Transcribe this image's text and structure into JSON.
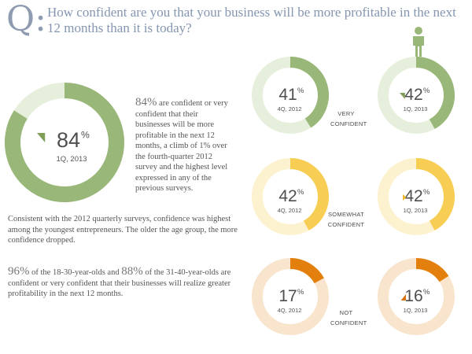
{
  "header": {
    "q_letter": "Q:",
    "question": "How confident are you that your business will be more profitable in the next 12 months than it is today?"
  },
  "summary": {
    "pct": "84%",
    "text": " are confident or very confident that their businesses will be more profitable in the next 12 months, a climb of 1% over the fourth-quarter 2012 survey and the highest level expressed in any of the previous surveys."
  },
  "paragraph": "Consistent with the 2012 quarterly surveys, confidence was highest among the youngest entrepreneurs. The older the age group, the more confidence dropped.",
  "age_note": {
    "pct1": "96%",
    "text1": " of the 18-30-year-olds and ",
    "pct2": "88%",
    "text2": " of the 31-40-year-olds are confident or very confident that their businesses will realize greater profitability in the next 12 months."
  },
  "categories": {
    "very_1": "VERY",
    "very_2": "CONFIDENT",
    "somewhat_1": "SOMEWHAT",
    "somewhat_2": "CONFIDENT",
    "not_1": "NOT",
    "not_2": "CONFIDENT"
  },
  "colors": {
    "green": "#9ab77a",
    "green_track": "#e6efdc",
    "yellow": "#f7cd53",
    "yellow_track": "#fdf2cf",
    "orange": "#e3800d",
    "orange_track": "#f9e4cd",
    "marker_green": "#7f9e57",
    "marker_yellow": "#f1b82a",
    "marker_orange": "#d9730e"
  },
  "chart_data": {
    "type": "pie",
    "title": "How confident are you that your business will be more profitable in the next 12 months than it is today?",
    "main": {
      "label": "1Q, 2013",
      "value": 84,
      "value_text": "84",
      "unit": "%",
      "marker": "down"
    },
    "categories": [
      "VERY CONFIDENT",
      "SOMEWHAT CONFIDENT",
      "NOT CONFIDENT"
    ],
    "series": [
      {
        "name": "4Q, 2012",
        "values": [
          41,
          42,
          17
        ],
        "value_texts": [
          "41",
          "42",
          "17"
        ]
      },
      {
        "name": "1Q, 2013",
        "values": [
          42,
          42,
          16
        ],
        "value_texts": [
          "42",
          "42",
          "16"
        ],
        "markers": [
          "down",
          "right",
          "up"
        ]
      }
    ]
  }
}
